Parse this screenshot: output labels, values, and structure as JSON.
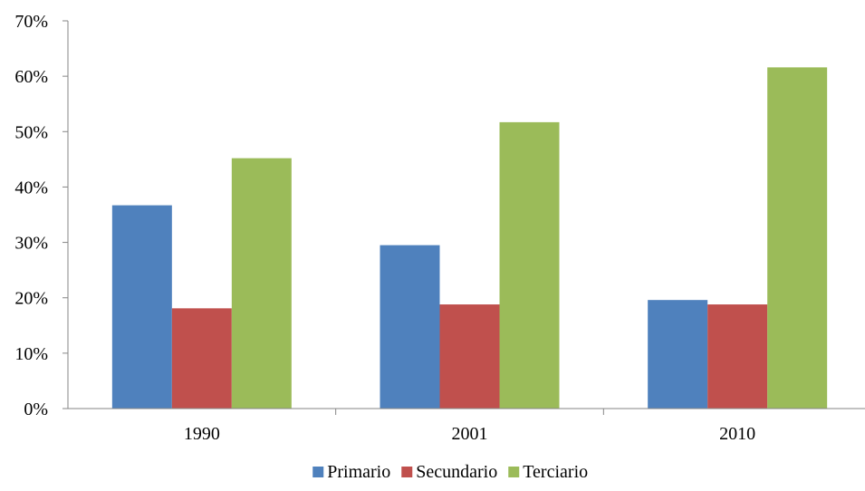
{
  "chart_data": {
    "type": "bar",
    "categories": [
      "1990",
      "2001",
      "2010"
    ],
    "series": [
      {
        "name": "Primario",
        "color": "#4F81BD",
        "values": [
          36.7,
          29.5,
          19.6
        ]
      },
      {
        "name": "Secundario",
        "color": "#C0504D",
        "values": [
          18.1,
          18.8,
          18.8
        ]
      },
      {
        "name": "Terciario",
        "color": "#9BBB59",
        "values": [
          45.2,
          51.7,
          61.6
        ]
      }
    ],
    "yticks": [
      "0%",
      "10%",
      "20%",
      "30%",
      "40%",
      "50%",
      "60%",
      "70%"
    ],
    "ylim": [
      0,
      70
    ],
    "legend_position": "bottom",
    "grid": false
  }
}
